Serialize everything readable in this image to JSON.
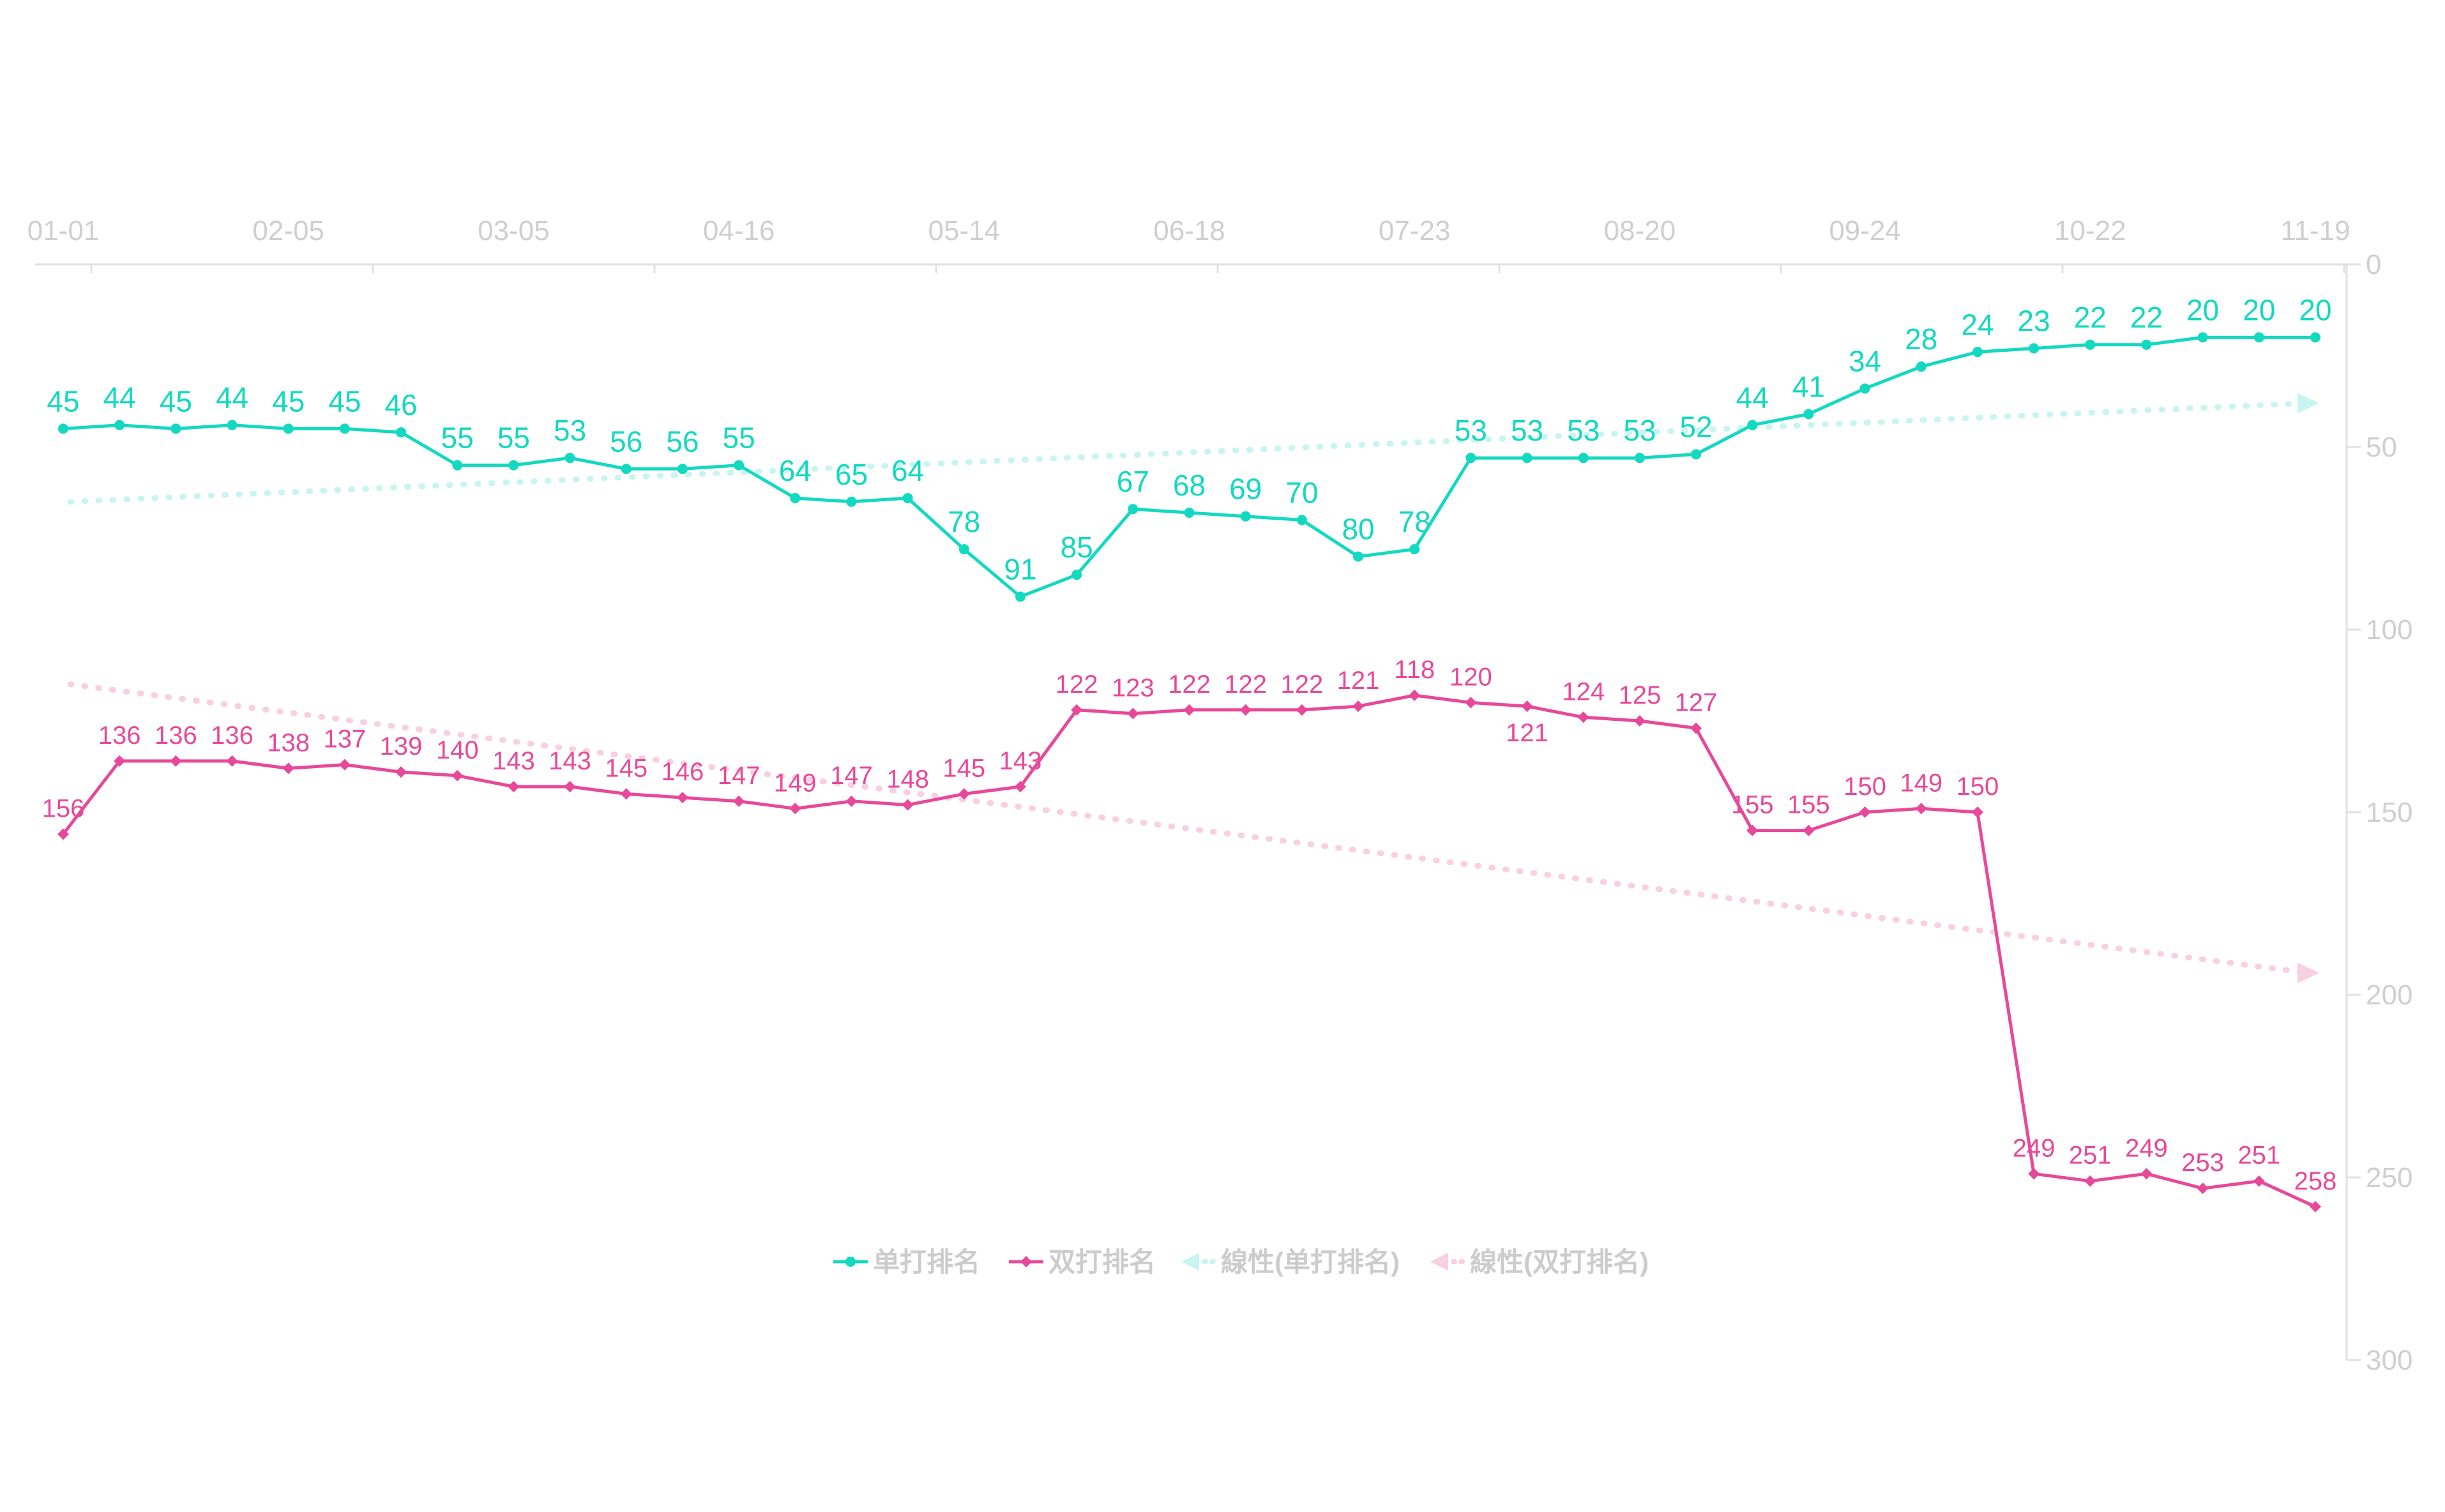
{
  "colors": {
    "singles": "#12d9c0",
    "doubles": "#e8489a",
    "singles_trend": "#c8f5f0",
    "doubles_trend": "#f9cfe2",
    "axis": "#e0e0e0",
    "tick_text": "#cfcfcf"
  },
  "chart_data": {
    "type": "line",
    "x_tick_labels": [
      "01-01",
      "02-05",
      "03-05",
      "04-16",
      "05-14",
      "06-18",
      "07-23",
      "08-20",
      "09-24",
      "10-22",
      "11-19"
    ],
    "x_axis_position": "top",
    "y_axis_position": "right",
    "y_inverted": true,
    "ylim": [
      0,
      300
    ],
    "y_ticks": [
      0,
      50,
      100,
      150,
      200,
      250,
      300
    ],
    "grid": false,
    "legend_placement": "bottom-center",
    "series": [
      {
        "name": "单打排名",
        "values": [
          45,
          44,
          45,
          44,
          45,
          45,
          46,
          55,
          55,
          53,
          56,
          56,
          55,
          64,
          65,
          64,
          78,
          91,
          85,
          67,
          68,
          69,
          70,
          80,
          78,
          53,
          53,
          53,
          53,
          52,
          44,
          41,
          34,
          28,
          24,
          23,
          22,
          22,
          20,
          20,
          20
        ]
      },
      {
        "name": "双打排名",
        "values": [
          156,
          136,
          136,
          136,
          138,
          137,
          139,
          140,
          143,
          143,
          145,
          146,
          147,
          149,
          147,
          148,
          145,
          143,
          122,
          123,
          122,
          122,
          122,
          121,
          118,
          120,
          121,
          124,
          125,
          127,
          155,
          155,
          150,
          149,
          150,
          249,
          251,
          249,
          253,
          251,
          258
        ]
      }
    ],
    "trendlines": [
      {
        "name": "線性(单打排名)",
        "start": 65,
        "end": 38
      },
      {
        "name": "線性(双打排名)",
        "start": 115,
        "end": 194
      }
    ]
  }
}
